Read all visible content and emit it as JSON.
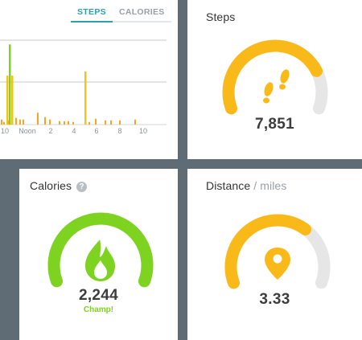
{
  "chart_panel": {
    "tabs": [
      {
        "label": "STEPS",
        "active": true
      },
      {
        "label": "CALORIES",
        "active": false
      }
    ],
    "x_tick_labels": [
      "10",
      "Noon",
      "2",
      "4",
      "6",
      "8",
      "10"
    ]
  },
  "chart_data": {
    "type": "bar",
    "title": "",
    "xlabel": "",
    "ylabel": "",
    "series": [
      {
        "color": "#f5a623",
        "values": [
          6,
          3,
          5,
          3,
          8,
          6,
          6,
          14,
          9,
          6,
          4,
          4,
          4,
          3,
          3,
          7,
          5,
          5,
          5,
          6
        ]
      },
      {
        "color": "#f0c419",
        "values": [
          58,
          58,
          63
        ]
      },
      {
        "color": "#7ed321",
        "values": [
          95
        ]
      }
    ],
    "grid": true,
    "legend": "none"
  },
  "steps_panel": {
    "title": "Steps",
    "value": "7,851",
    "icon": "footprints-icon",
    "progress": 0.785,
    "color": "#f9b919"
  },
  "calories_panel": {
    "title": "Calories",
    "help": "?",
    "value": "2,244",
    "status": "Champ!",
    "icon": "flame-icon",
    "progress": 1.0,
    "color": "#7ed321"
  },
  "distance_panel": {
    "title": "Distance",
    "unit": " / miles",
    "value": "3.33",
    "icon": "map-pin-icon",
    "progress": 0.666,
    "color": "#f9b919"
  },
  "colors": {
    "track": "#e6e6e6",
    "accent": "#2aa3a8",
    "frame": "#5f6c76"
  }
}
